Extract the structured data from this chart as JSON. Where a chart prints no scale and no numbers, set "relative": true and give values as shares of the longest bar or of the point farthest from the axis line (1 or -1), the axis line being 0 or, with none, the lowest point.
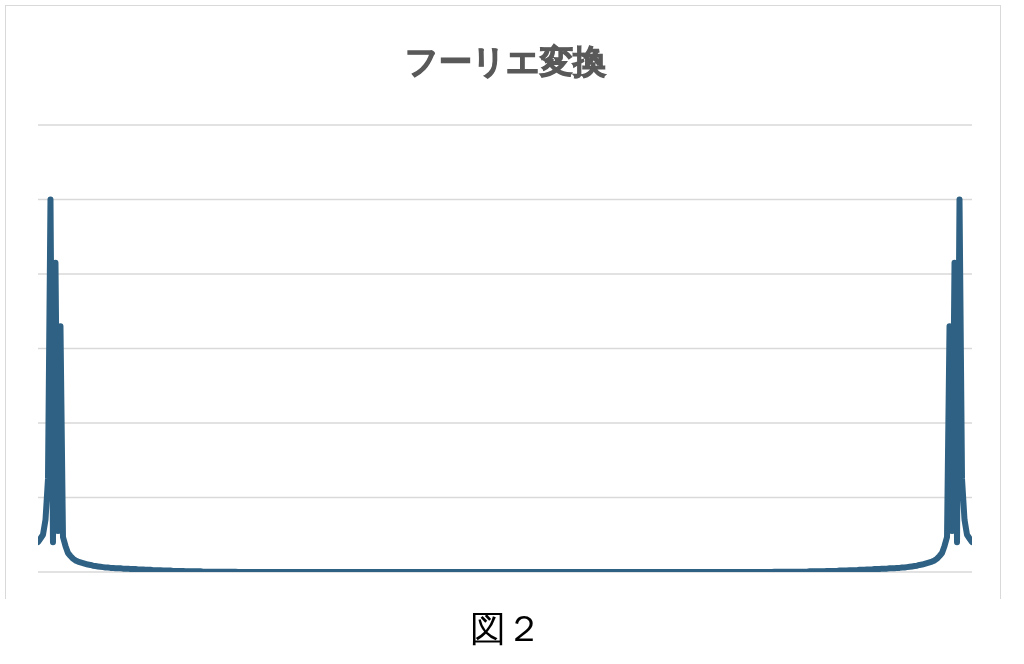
{
  "chart_data": {
    "type": "line",
    "title": "フーリエ変換",
    "categories": [
      null,
      null,
      null,
      null,
      null,
      null,
      null,
      null,
      null,
      null,
      null,
      null,
      null,
      null,
      null,
      null,
      null,
      null,
      null,
      null,
      null,
      null,
      null,
      null,
      null,
      null,
      null,
      null,
      null,
      null,
      null,
      null,
      null,
      null,
      null,
      null,
      null,
      null,
      null,
      null,
      null,
      null,
      null,
      null,
      null,
      null,
      null,
      null,
      null,
      null,
      null,
      null,
      null,
      null,
      null,
      null,
      null,
      null,
      null,
      null,
      null,
      null,
      null,
      null,
      null,
      null,
      null,
      null,
      null,
      null,
      null,
      null,
      null,
      null,
      null,
      null,
      null,
      null,
      null,
      null,
      null,
      null,
      null,
      null,
      null,
      null,
      null,
      null,
      null,
      null,
      null,
      null,
      null,
      null,
      null,
      null,
      null,
      null,
      null,
      null,
      null,
      null,
      null,
      null,
      null,
      null,
      null,
      null,
      null,
      null,
      null,
      null,
      null,
      null,
      null,
      null,
      null,
      null,
      null,
      null,
      null,
      null,
      null,
      null,
      null,
      null,
      null,
      null,
      null,
      null,
      null,
      null,
      null,
      null,
      null,
      null,
      null,
      null,
      null,
      null,
      null,
      null,
      null,
      null,
      null,
      null,
      null,
      null,
      null,
      null,
      null,
      null,
      null,
      null,
      null,
      null,
      null,
      null,
      null,
      null,
      null,
      null,
      null,
      null,
      null,
      null,
      null,
      null,
      null,
      null,
      null,
      null,
      null,
      null,
      null,
      null,
      null,
      null,
      null,
      null,
      null,
      null,
      null,
      null,
      null,
      null,
      null,
      null,
      null,
      null,
      null,
      null,
      null,
      null,
      null,
      null,
      null,
      null,
      null,
      null,
      null,
      null,
      null,
      null,
      null,
      null,
      null,
      null,
      null,
      null,
      null,
      null,
      null,
      null,
      null,
      null,
      null,
      null,
      null,
      null,
      null,
      null,
      null,
      null,
      null,
      null,
      null,
      null,
      null,
      null,
      null,
      null,
      null,
      null,
      null,
      null,
      null,
      null,
      null,
      null,
      null,
      null,
      null,
      null,
      null,
      null,
      null,
      null,
      null,
      null,
      null,
      null,
      null,
      null,
      null,
      null,
      null,
      null,
      null,
      null,
      null,
      null,
      null,
      null,
      null,
      null,
      null,
      null,
      null,
      null,
      null,
      null,
      null,
      null,
      null,
      null,
      null,
      null,
      null,
      null,
      null,
      null,
      null,
      null,
      null,
      null,
      null,
      null,
      null,
      null,
      null,
      null,
      null,
      null,
      null,
      null,
      null,
      null,
      null,
      null,
      null,
      null,
      null,
      null,
      null,
      null,
      null,
      null,
      null,
      null,
      null,
      null,
      null,
      null,
      null,
      null,
      null,
      null,
      null,
      null,
      null,
      null,
      null,
      null,
      null,
      null,
      null,
      null,
      null,
      null,
      null,
      null,
      null,
      null,
      null,
      null,
      null,
      null,
      null,
      null,
      null,
      null,
      null,
      null,
      null,
      null,
      null,
      null,
      null,
      null,
      null,
      null,
      null,
      null,
      null,
      null,
      null,
      null,
      null,
      null,
      null,
      null,
      null,
      null,
      null,
      null,
      null,
      null,
      null,
      null,
      null,
      null,
      null,
      null,
      null
    ],
    "values": [
      0.08,
      0.09,
      0.1,
      0.14,
      0.25,
      1,
      0.08,
      0.83,
      0.11,
      0.66,
      0.094,
      0.07,
      0.051,
      0.043,
      0.036,
      0.031,
      0.028,
      0.026,
      0.024,
      0.022,
      0.02,
      0.019,
      0.017,
      0.016,
      0.015,
      0.014,
      0.013,
      0.012,
      0.012,
      0.011,
      0.011,
      0.01,
      0.01,
      0.01,
      0.009,
      0.009,
      0.009,
      0.008,
      0.008,
      0.008,
      0.007,
      0.007,
      0.007,
      0.006,
      0.006,
      0.006,
      0.005,
      0.005,
      0.005,
      0.005,
      0.004,
      0.004,
      0.004,
      0.004,
      0.003,
      0.003,
      0.003,
      0.003,
      0.003,
      0.002,
      0.002,
      0.002,
      0.002,
      0.002,
      0.002,
      0.002,
      0.001,
      0.001,
      0.001,
      0.001,
      0.001,
      0.001,
      0.001,
      0.001,
      0.001,
      0.001,
      0.001,
      0.001,
      0.001,
      0.001,
      0,
      0,
      0,
      0,
      0,
      0,
      0,
      0,
      0,
      0,
      0,
      0,
      0,
      0,
      0,
      0,
      0,
      0,
      0,
      0,
      0,
      0,
      0,
      0,
      0,
      0,
      0,
      0,
      0,
      0,
      0,
      0,
      0,
      0,
      0,
      0,
      0,
      0,
      0,
      0,
      0,
      0,
      0,
      0,
      0,
      0,
      0,
      0,
      0,
      0,
      0,
      0,
      0,
      0,
      0,
      0,
      0,
      0,
      0,
      0,
      0,
      0,
      0,
      0,
      0,
      0,
      0,
      0,
      0,
      0,
      0,
      0,
      0,
      0,
      0,
      0,
      0,
      0,
      0,
      0,
      0,
      0,
      0,
      0,
      0,
      0,
      0,
      0,
      0,
      0,
      0,
      0,
      0,
      0,
      0,
      0,
      0,
      0,
      0,
      0,
      0,
      0,
      0,
      0,
      0,
      0,
      0,
      0,
      0,
      0,
      0,
      0,
      0,
      0,
      0,
      0,
      0,
      0,
      0,
      0,
      0,
      0,
      0,
      0,
      0,
      0,
      0,
      0,
      0,
      0,
      0,
      0,
      0,
      0,
      0,
      0,
      0,
      0,
      0,
      0,
      0,
      0,
      0,
      0,
      0,
      0,
      0,
      0,
      0,
      0,
      0,
      0,
      0,
      0,
      0,
      0,
      0,
      0,
      0,
      0,
      0,
      0,
      0,
      0,
      0,
      0,
      0,
      0,
      0,
      0,
      0,
      0,
      0,
      0,
      0,
      0,
      0,
      0,
      0,
      0,
      0,
      0,
      0,
      0,
      0,
      0,
      0,
      0,
      0,
      0,
      0,
      0,
      0,
      0,
      0,
      0,
      0,
      0,
      0,
      0,
      0,
      0,
      0,
      0,
      0,
      0,
      0,
      0,
      0,
      0,
      0,
      0,
      0,
      0,
      0,
      0.001,
      0.001,
      0.001,
      0.001,
      0.001,
      0.001,
      0.001,
      0.001,
      0.001,
      0.001,
      0.001,
      0.001,
      0.001,
      0.001,
      0.002,
      0.002,
      0.002,
      0.002,
      0.002,
      0.002,
      0.002,
      0.003,
      0.003,
      0.003,
      0.003,
      0.003,
      0.004,
      0.004,
      0.004,
      0.004,
      0.005,
      0.005,
      0.005,
      0.005,
      0.006,
      0.006,
      0.006,
      0.007,
      0.007,
      0.007,
      0.008,
      0.008,
      0.008,
      0.009,
      0.009,
      0.009,
      0.01,
      0.01,
      0.01,
      0.011,
      0.011,
      0.012,
      0.012,
      0.013,
      0.014,
      0.015,
      0.016,
      0.017,
      0.019,
      0.02,
      0.022,
      0.024,
      0.026,
      0.028,
      0.031,
      0.036,
      0.043,
      0.051,
      0.07,
      0.094,
      0.66,
      0.11,
      0.83,
      0.08,
      1,
      0.25,
      0.14,
      0.1,
      0.09,
      0.08
    ],
    "color": "#2e6183",
    "relative": true,
    "grid": "y",
    "tick_labels": false,
    "line_style": "solid",
    "annotations": [
      "図２"
    ]
  }
}
